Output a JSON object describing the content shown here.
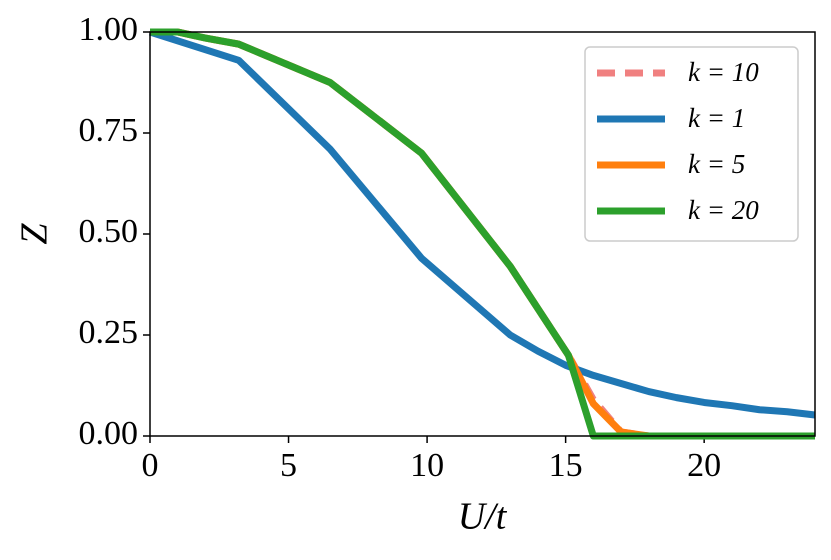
{
  "chart_data": {
    "type": "line",
    "xlabel": "U/t",
    "ylabel": "Z",
    "xlim": [
      0,
      24
    ],
    "ylim": [
      0,
      1
    ],
    "xticks": [
      0,
      5,
      10,
      15,
      20
    ],
    "yticks": [
      {
        "value": 0,
        "label": "0.00"
      },
      {
        "value": 0.25,
        "label": "0.25"
      },
      {
        "value": 0.5,
        "label": "0.50"
      },
      {
        "value": 0.75,
        "label": "0.75"
      },
      {
        "value": 1,
        "label": "1.00"
      }
    ],
    "legend": "upper right",
    "series": [
      {
        "name": "k = 10",
        "color": "#f08080",
        "dashed": true,
        "x": [
          0,
          1,
          2,
          3.2,
          6.5,
          9.8,
          13,
          15.1,
          16,
          17,
          18,
          20,
          22,
          24
        ],
        "values": [
          1.0,
          1.0,
          0.985,
          0.97,
          0.875,
          0.7,
          0.42,
          0.2,
          0.09,
          0.01,
          0,
          0,
          0,
          0
        ]
      },
      {
        "name": "k = 1",
        "color": "#1f77b4",
        "x": [
          0,
          3.2,
          6.5,
          9.8,
          13,
          14,
          15,
          16,
          17,
          18,
          19,
          20,
          21,
          22,
          23,
          24
        ],
        "values": [
          1.0,
          0.93,
          0.71,
          0.44,
          0.25,
          0.21,
          0.175,
          0.15,
          0.13,
          0.11,
          0.095,
          0.083,
          0.075,
          0.065,
          0.06,
          0.052
        ]
      },
      {
        "name": "k = 5",
        "color": "#ff7f0e",
        "x": [
          0,
          1,
          2,
          3.2,
          6.5,
          9.8,
          13,
          15.1,
          16,
          17,
          18,
          20,
          22,
          24
        ],
        "values": [
          1.0,
          1.0,
          0.985,
          0.97,
          0.875,
          0.7,
          0.42,
          0.2,
          0.08,
          0.01,
          0,
          0,
          0,
          0
        ]
      },
      {
        "name": "k = 20",
        "color": "#2ca02c",
        "x": [
          0,
          1,
          2,
          3.2,
          6.5,
          9.8,
          13,
          15.1,
          16,
          18,
          20,
          22,
          24
        ],
        "values": [
          1.0,
          1.0,
          0.985,
          0.97,
          0.875,
          0.7,
          0.42,
          0.2,
          0,
          0,
          0,
          0,
          0
        ]
      }
    ]
  }
}
